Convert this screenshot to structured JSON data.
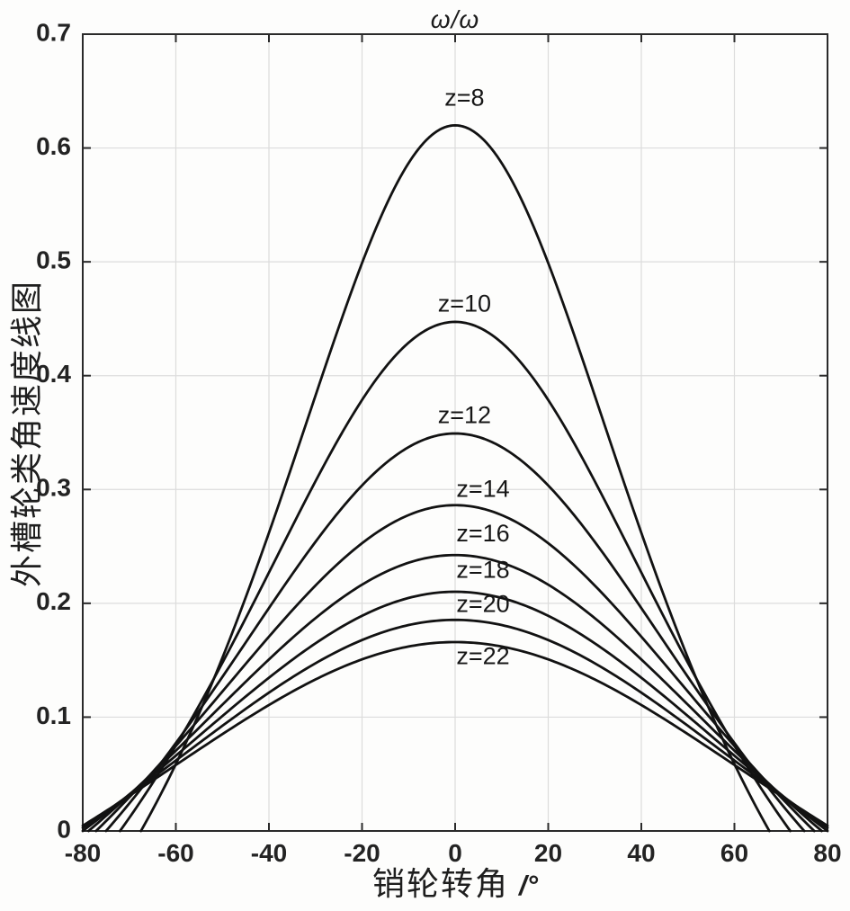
{
  "figure": {
    "title": "ω/ω",
    "xlabel": "销轮转角",
    "xlabel_unit": "/°",
    "ylabel": "外槽轮类角速度线图"
  },
  "chart_data": {
    "type": "line",
    "title": "ω/ω",
    "xlabel": "销轮转角 /°",
    "ylabel": "外槽轮类角速度线图",
    "xlim": [
      -80,
      80
    ],
    "ylim": [
      0,
      0.7
    ],
    "xticks": [
      -80,
      -60,
      -40,
      -20,
      0,
      20,
      40,
      60,
      80
    ],
    "xtick_labels": [
      "-80",
      "-60",
      "-40",
      "-20",
      "0",
      "20",
      "40",
      "60",
      "80"
    ],
    "yticks": [
      0,
      0.1,
      0.2,
      0.3,
      0.4,
      0.5,
      0.6,
      0.7
    ],
    "ytick_labels": [
      "0",
      "0.1",
      "0.2",
      "0.3",
      "0.4",
      "0.5",
      "0.6",
      "0.7"
    ],
    "grid": true,
    "legend": "none",
    "colors": {
      "curve": "#121212",
      "grid": "#dcdcdc",
      "axis": "#2a2a2a",
      "text": "#232323"
    },
    "formula": "y(x) = m*(cos(x_deg)-m) / (1 + m^2 - 2*m*cos(x_deg)), m = sin(pi/z); curves clipped to y >= 0 inside x in [-80, 80]",
    "series": [
      {
        "label": "z=8",
        "z": 8,
        "m": 0.38268,
        "peak_y": 0.62,
        "zero_crossing_deg": 67.5
      },
      {
        "label": "z=10",
        "z": 10,
        "m": 0.30902,
        "peak_y": 0.447,
        "zero_crossing_deg": 72.0
      },
      {
        "label": "z=12",
        "z": 12,
        "m": 0.25882,
        "peak_y": 0.349,
        "zero_crossing_deg": 75.0
      },
      {
        "label": "z=14",
        "z": 14,
        "m": 0.22252,
        "peak_y": 0.286,
        "zero_crossing_deg": 77.14
      },
      {
        "label": "z=16",
        "z": 16,
        "m": 0.19509,
        "peak_y": 0.242,
        "zero_crossing_deg": 78.75
      },
      {
        "label": "z=18",
        "z": 18,
        "m": 0.17365,
        "peak_y": 0.21,
        "zero_crossing_deg": 80.0
      },
      {
        "label": "z=20",
        "z": 20,
        "m": 0.15643,
        "peak_y": 0.185,
        "zero_crossing_deg": 81.0
      },
      {
        "label": "z=22",
        "z": 22,
        "m": 0.14231,
        "peak_y": 0.166,
        "zero_crossing_deg": 81.82
      }
    ],
    "curve_labels": [
      {
        "text": "z=8",
        "x": 2,
        "y": 0.643
      },
      {
        "text": "z=10",
        "x": 2,
        "y": 0.462
      },
      {
        "text": "z=12",
        "x": 2,
        "y": 0.364
      },
      {
        "text": "z=14",
        "x": 6,
        "y": 0.299
      },
      {
        "text": "z=16",
        "x": 6,
        "y": 0.26
      },
      {
        "text": "z=18",
        "x": 6,
        "y": 0.228
      },
      {
        "text": "z=20",
        "x": 6,
        "y": 0.198
      },
      {
        "text": "z=22",
        "x": 6,
        "y": 0.152
      }
    ]
  }
}
